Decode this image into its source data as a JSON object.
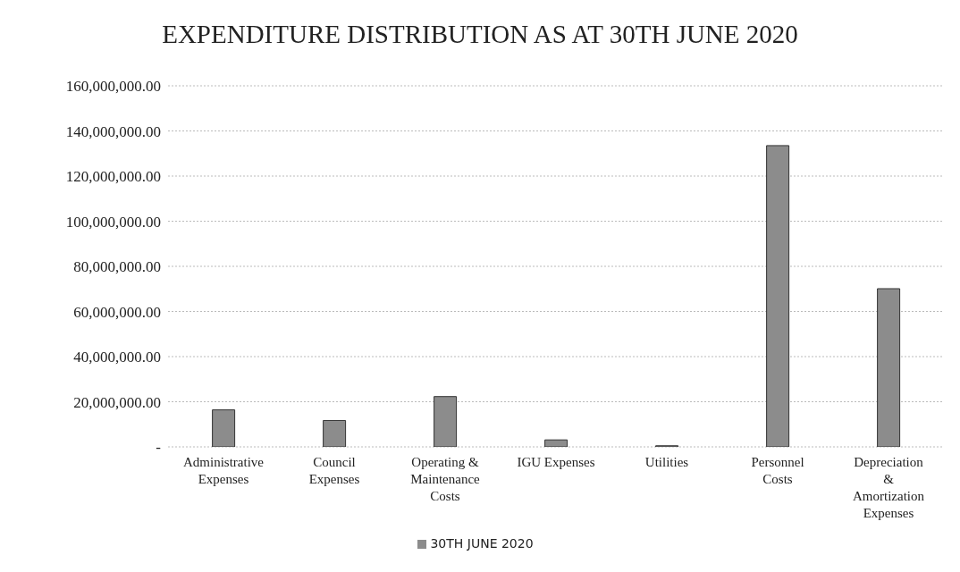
{
  "chart_data": {
    "type": "bar",
    "title": "EXPENDITURE DISTRIBUTION AS AT 30TH JUNE 2020",
    "categories": [
      "Administrative Expenses",
      "Council Expenses",
      "Operating & Maintenance Costs",
      "IGU Expenses",
      "Utilities",
      "Personnel Costs",
      "Depreciation & Amortization Expenses"
    ],
    "series": [
      {
        "name": "30TH JUNE 2020",
        "color": "#8c8c8c",
        "values": [
          16400000,
          11700000,
          22300000,
          3100000,
          500000,
          133500000,
          70100000
        ]
      }
    ],
    "ylim": [
      0,
      160000000
    ],
    "yticks": [
      {
        "value": 0,
        "label": "-"
      },
      {
        "value": 20000000,
        "label": "20,000,000.00"
      },
      {
        "value": 40000000,
        "label": "40,000,000.00"
      },
      {
        "value": 60000000,
        "label": "60,000,000.00"
      },
      {
        "value": 80000000,
        "label": "80,000,000.00"
      },
      {
        "value": 100000000,
        "label": "100,000,000.00"
      },
      {
        "value": 120000000,
        "label": "120,000,000.00"
      },
      {
        "value": 140000000,
        "label": "140,000,000.00"
      },
      {
        "value": 160000000,
        "label": "160,000,000.00"
      }
    ],
    "grid": "y",
    "legend": "bottom"
  }
}
